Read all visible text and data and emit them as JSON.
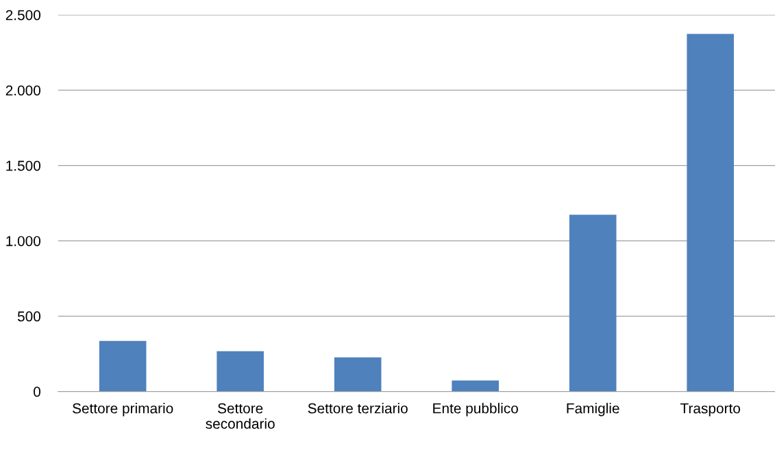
{
  "chart_data": {
    "type": "bar",
    "categories": [
      "Settore primario",
      "Settore\nsecondario",
      "Settore terziario",
      "Ente pubblico",
      "Famiglie",
      "Trasporto"
    ],
    "values": [
      336,
      268,
      227,
      73,
      1173,
      2373
    ],
    "color": "#4f81bd",
    "ylim": [
      0,
      2500
    ],
    "yticks": [
      {
        "value": 0,
        "label": "0"
      },
      {
        "value": 500,
        "label": "500"
      },
      {
        "value": 1000,
        "label": "1.000"
      },
      {
        "value": 1500,
        "label": "1.500"
      },
      {
        "value": 2000,
        "label": "2.000"
      },
      {
        "value": 2500,
        "label": "2.500"
      }
    ],
    "grid": "y"
  }
}
